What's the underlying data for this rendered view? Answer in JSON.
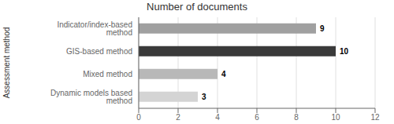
{
  "chart_data": {
    "type": "bar",
    "orientation": "horizontal",
    "title": "Number of documents",
    "ylabel": "Assessment method",
    "categories": [
      "Indicator/index-based method",
      "GIS-based method",
      "Mixed method",
      "Dynamic models based method"
    ],
    "values": [
      9,
      10,
      4,
      3
    ],
    "colors": [
      "#a0a0a0",
      "#3a3a3a",
      "#b8b8b8",
      "#d4d4d4"
    ],
    "xlim": [
      0,
      12
    ],
    "xticks": [
      0,
      2,
      4,
      6,
      8,
      10,
      12
    ],
    "grid": true,
    "data_labels": true
  }
}
